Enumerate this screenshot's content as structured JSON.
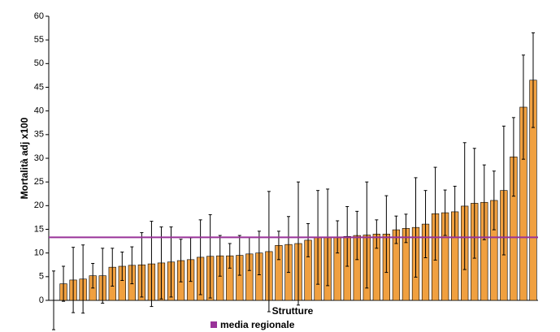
{
  "chart_data": {
    "type": "bar",
    "x_label": "Strutture",
    "y_label": "Mortalità adj x100",
    "color": "#f0a040",
    "values": [
      0,
      3.5,
      4.3,
      4.5,
      5.2,
      5.2,
      7,
      7.2,
      7.4,
      7.5,
      7.7,
      7.9,
      8.1,
      8.4,
      8.6,
      9.1,
      9.3,
      9.4,
      9.4,
      9.5,
      9.8,
      10,
      10.3,
      11.6,
      11.8,
      12,
      12.7,
      13.3,
      13.3,
      13.4,
      13.5,
      13.7,
      13.8,
      14,
      14,
      14.9,
      15.2,
      15.4,
      16.1,
      18.3,
      18.5,
      18.7,
      19.9,
      20.5,
      20.7,
      21.1,
      23.2,
      30.3,
      40.8,
      46.5
    ],
    "errors": [
      6.2,
      3.7,
      6.9,
      7.2,
      2.6,
      5.8,
      4,
      3,
      3.9,
      6.8,
      9,
      7.6,
      7.4,
      4.5,
      4.6,
      7.9,
      8.8,
      4.3,
      2.6,
      4.2,
      3.5,
      4.6,
      12.7,
      3,
      5.9,
      13,
      3.5,
      9.9,
      10.2,
      3.4,
      6.3,
      5.1,
      11.2,
      3,
      8.1,
      2.9,
      3,
      10.5,
      7.1,
      9.8,
      4.8,
      5.4,
      13.4,
      11.6,
      7.9,
      6.2,
      13.6,
      8.3,
      11,
      10
    ],
    "reference": {
      "name": "media regionale",
      "value": 13.3,
      "color": "#993399"
    },
    "ylim": [
      0,
      60
    ],
    "yticks": [
      0,
      5,
      10,
      15,
      20,
      25,
      30,
      35,
      40,
      45,
      50,
      55,
      60
    ]
  }
}
